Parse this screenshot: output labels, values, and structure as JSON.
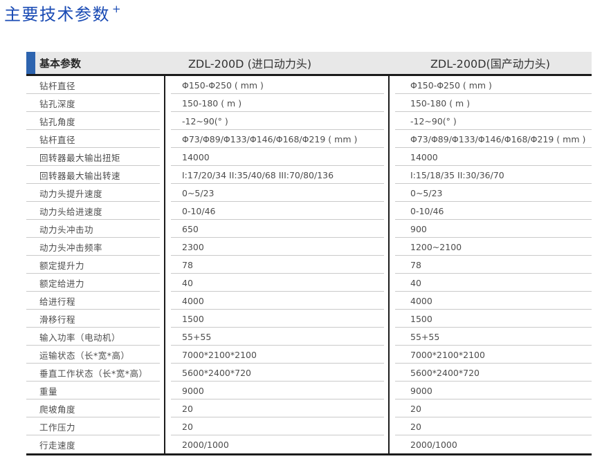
{
  "page": {
    "title": "主要技术参数",
    "title_superscript": "+"
  },
  "colors": {
    "title_blue": "#1a4bb4",
    "accent_bar_blue": "#2d64af",
    "header_background": "#e8e8e8",
    "dark_rule": "#1b1b1b",
    "row_separator": "#c9c9c9",
    "body_text": "#4c4c4c"
  },
  "table": {
    "header": {
      "param": "基本参数",
      "imported": "ZDL-200D (进口动力头)",
      "domestic": "ZDL-200D(国产动力头)"
    },
    "rows": [
      {
        "label": "钻杆直径",
        "imported": "Φ150-Φ250 ( mm )",
        "domestic": "Φ150-Φ250 ( mm )"
      },
      {
        "label": "钻孔深度",
        "imported": "150-180 ( m )",
        "domestic": "150-180 ( m )"
      },
      {
        "label": "钻孔角度",
        "imported": "-12~90(° )",
        "domestic": "-12~90(° )"
      },
      {
        "label": "钻杆直径",
        "imported": "Φ73/Φ89/Φ133/Φ146/Φ168/Φ219 ( mm )",
        "domestic": "Φ73/Φ89/Φ133/Φ146/Φ168/Φ219 ( mm )"
      },
      {
        "label": "回转器最大输出扭矩",
        "imported": "14000",
        "domestic": "14000"
      },
      {
        "label": "回转器最大输出转速",
        "imported": "I:17/20/34 II:35/40/68 III:70/80/136",
        "domestic": "I:15/18/35 II:30/36/70"
      },
      {
        "label": "动力头提升速度",
        "imported": "0~5/23",
        "domestic": "0~5/23"
      },
      {
        "label": "动力头给进速度",
        "imported": "0-10/46",
        "domestic": "0-10/46"
      },
      {
        "label": "动力头冲击功",
        "imported": "650",
        "domestic": "900"
      },
      {
        "label": "动力头冲击频率",
        "imported": "2300",
        "domestic": "1200~2100"
      },
      {
        "label": "额定提升力",
        "imported": "78",
        "domestic": "78"
      },
      {
        "label": "额定给进力",
        "imported": "40",
        "domestic": "40"
      },
      {
        "label": "给进行程",
        "imported": "4000",
        "domestic": "4000"
      },
      {
        "label": "滑移行程",
        "imported": "1500",
        "domestic": "1500"
      },
      {
        "label": "输入功率（电动机）",
        "imported": "55+55",
        "domestic": "55+55"
      },
      {
        "label": "运输状态（长*宽*高）",
        "imported": "7000*2100*2100",
        "domestic": "7000*2100*2100"
      },
      {
        "label": "垂直工作状态（长*宽*高）",
        "imported": "5600*2400*720",
        "domestic": "5600*2400*720"
      },
      {
        "label": "重量",
        "imported": "9000",
        "domestic": "9000"
      },
      {
        "label": "爬坡角度",
        "imported": "20",
        "domestic": "20"
      },
      {
        "label": "工作压力",
        "imported": "20",
        "domestic": "20"
      },
      {
        "label": "行走速度",
        "imported": "2000/1000",
        "domestic": "2000/1000"
      }
    ]
  }
}
